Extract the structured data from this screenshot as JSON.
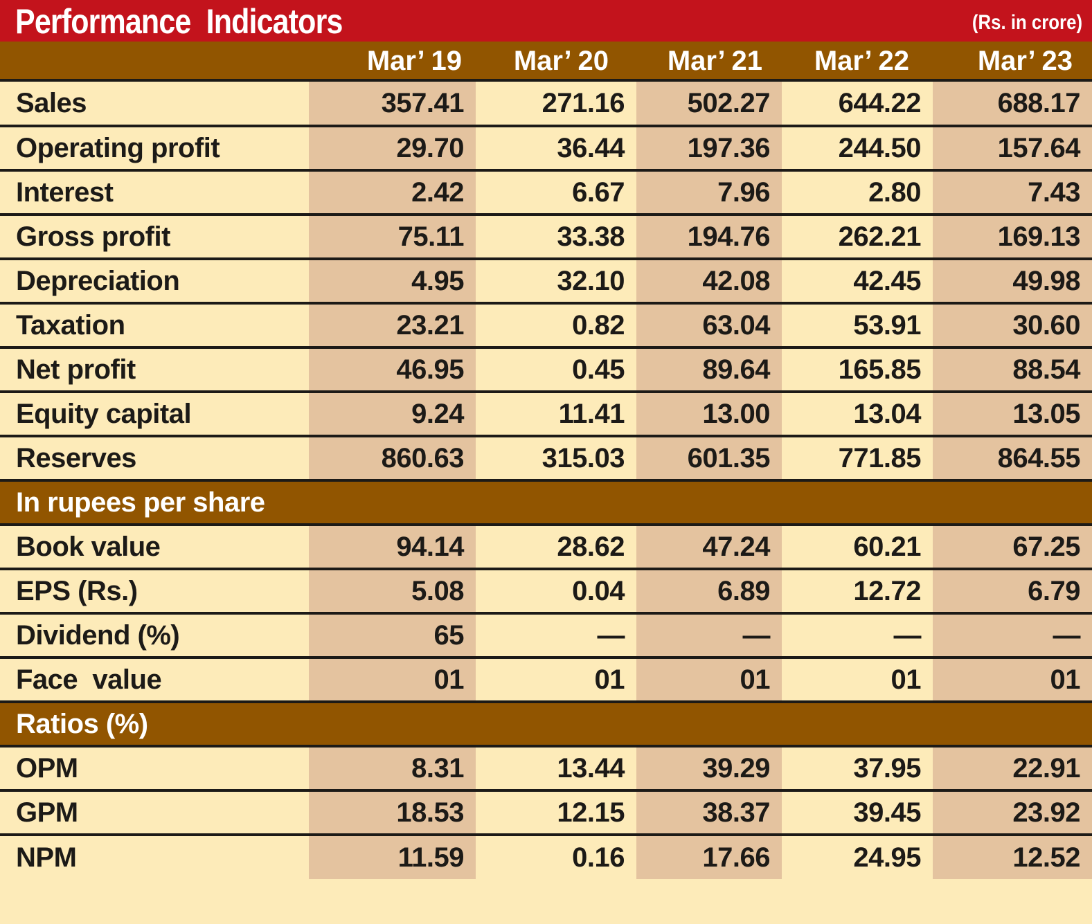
{
  "title": "Performance  Indicators",
  "unit_note": "(Rs. in crore)",
  "columns": [
    "Mar’ 19",
    "Mar’ 20",
    "Mar’ 21",
    "Mar’ 22",
    "Mar’ 23"
  ],
  "financials": [
    {
      "label": "Sales",
      "values": [
        "357.41",
        "271.16",
        "502.27",
        "644.22",
        "688.17"
      ]
    },
    {
      "label": "Operating profit",
      "values": [
        "29.70",
        "36.44",
        "197.36",
        "244.50",
        "157.64"
      ]
    },
    {
      "label": "Interest",
      "values": [
        "2.42",
        "6.67",
        "7.96",
        "2.80",
        "7.43"
      ]
    },
    {
      "label": "Gross profit",
      "values": [
        "75.11",
        "33.38",
        "194.76",
        "262.21",
        "169.13"
      ]
    },
    {
      "label": "Depreciation",
      "values": [
        "4.95",
        "32.10",
        "42.08",
        "42.45",
        "49.98"
      ]
    },
    {
      "label": "Taxation",
      "values": [
        "23.21",
        "0.82",
        "63.04",
        "53.91",
        "30.60"
      ]
    },
    {
      "label": "Net profit",
      "values": [
        "46.95",
        "0.45",
        "89.64",
        "165.85",
        "88.54"
      ]
    },
    {
      "label": "Equity capital",
      "values": [
        "9.24",
        "11.41",
        "13.00",
        "13.04",
        "13.05"
      ]
    },
    {
      "label": "Reserves",
      "values": [
        "860.63",
        "315.03",
        "601.35",
        "771.85",
        "864.55"
      ]
    }
  ],
  "per_share_section": "In rupees per share",
  "per_share": [
    {
      "label": "Book value",
      "values": [
        "94.14",
        "28.62",
        "47.24",
        "60.21",
        "67.25"
      ]
    },
    {
      "label": "EPS (Rs.)",
      "values": [
        "5.08",
        "0.04",
        "6.89",
        "12.72",
        "6.79"
      ]
    },
    {
      "label": "Dividend (%)",
      "values": [
        "65",
        "—",
        "—",
        "—",
        "—"
      ]
    },
    {
      "label": "Face  value",
      "values": [
        "01",
        "01",
        "01",
        "01",
        "01"
      ]
    }
  ],
  "ratios_section": "Ratios (%)",
  "ratios": [
    {
      "label": "OPM",
      "values": [
        "8.31",
        "13.44",
        "39.29",
        "37.95",
        "22.91"
      ]
    },
    {
      "label": "GPM",
      "values": [
        "18.53",
        "12.15",
        "38.37",
        "39.45",
        "23.92"
      ]
    },
    {
      "label": "NPM",
      "values": [
        "11.59",
        "0.16",
        "17.66",
        "24.95",
        "12.52"
      ]
    }
  ],
  "colors": {
    "title_bar": "#c3131c",
    "header_band": "#915500",
    "row_light": "#fdebb9",
    "row_shade": "#e4c39f",
    "rule": "#1c1a17"
  }
}
